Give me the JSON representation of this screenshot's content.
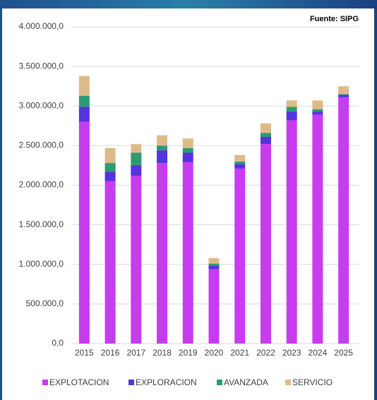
{
  "chart_data": {
    "type": "stacked_bar",
    "annotation": "Fuente: SIPG",
    "categories": [
      "2015",
      "2016",
      "2017",
      "2018",
      "2019",
      "2020",
      "2021",
      "2022",
      "2023",
      "2024",
      "2025"
    ],
    "series": [
      {
        "name": "EXPLOTACION",
        "color": "#c83cf0",
        "values": [
          2800000,
          2050000,
          2120000,
          2280000,
          2290000,
          940000,
          2210000,
          2520000,
          2820000,
          2890000,
          3110000
        ]
      },
      {
        "name": "EXPLORACION",
        "color": "#5533dd",
        "values": [
          190000,
          120000,
          130000,
          160000,
          120000,
          40000,
          60000,
          90000,
          110000,
          40000,
          30000
        ]
      },
      {
        "name": "AVANZADA",
        "color": "#2e9a73",
        "values": [
          140000,
          110000,
          160000,
          60000,
          60000,
          30000,
          30000,
          50000,
          60000,
          30000,
          10000
        ]
      },
      {
        "name": "SERVICIO",
        "color": "#ddbb88",
        "values": [
          250000,
          190000,
          110000,
          130000,
          120000,
          70000,
          80000,
          120000,
          80000,
          110000,
          100000
        ]
      }
    ],
    "ylim": [
      0,
      4000000
    ],
    "yticks": [
      {
        "value": 0,
        "label": "0,0"
      },
      {
        "value": 500000,
        "label": "500.000,0"
      },
      {
        "value": 1000000,
        "label": "1.000.000,0"
      },
      {
        "value": 1500000,
        "label": "1.500.000,0"
      },
      {
        "value": 2000000,
        "label": "2.000.000,0"
      },
      {
        "value": 2500000,
        "label": "2.500.000,0"
      },
      {
        "value": 3000000,
        "label": "3.000.000,0"
      },
      {
        "value": 3500000,
        "label": "3.500.000,0"
      },
      {
        "value": 4000000,
        "label": "4.000.000,0"
      }
    ],
    "grid": true,
    "legend": "bottom"
  }
}
